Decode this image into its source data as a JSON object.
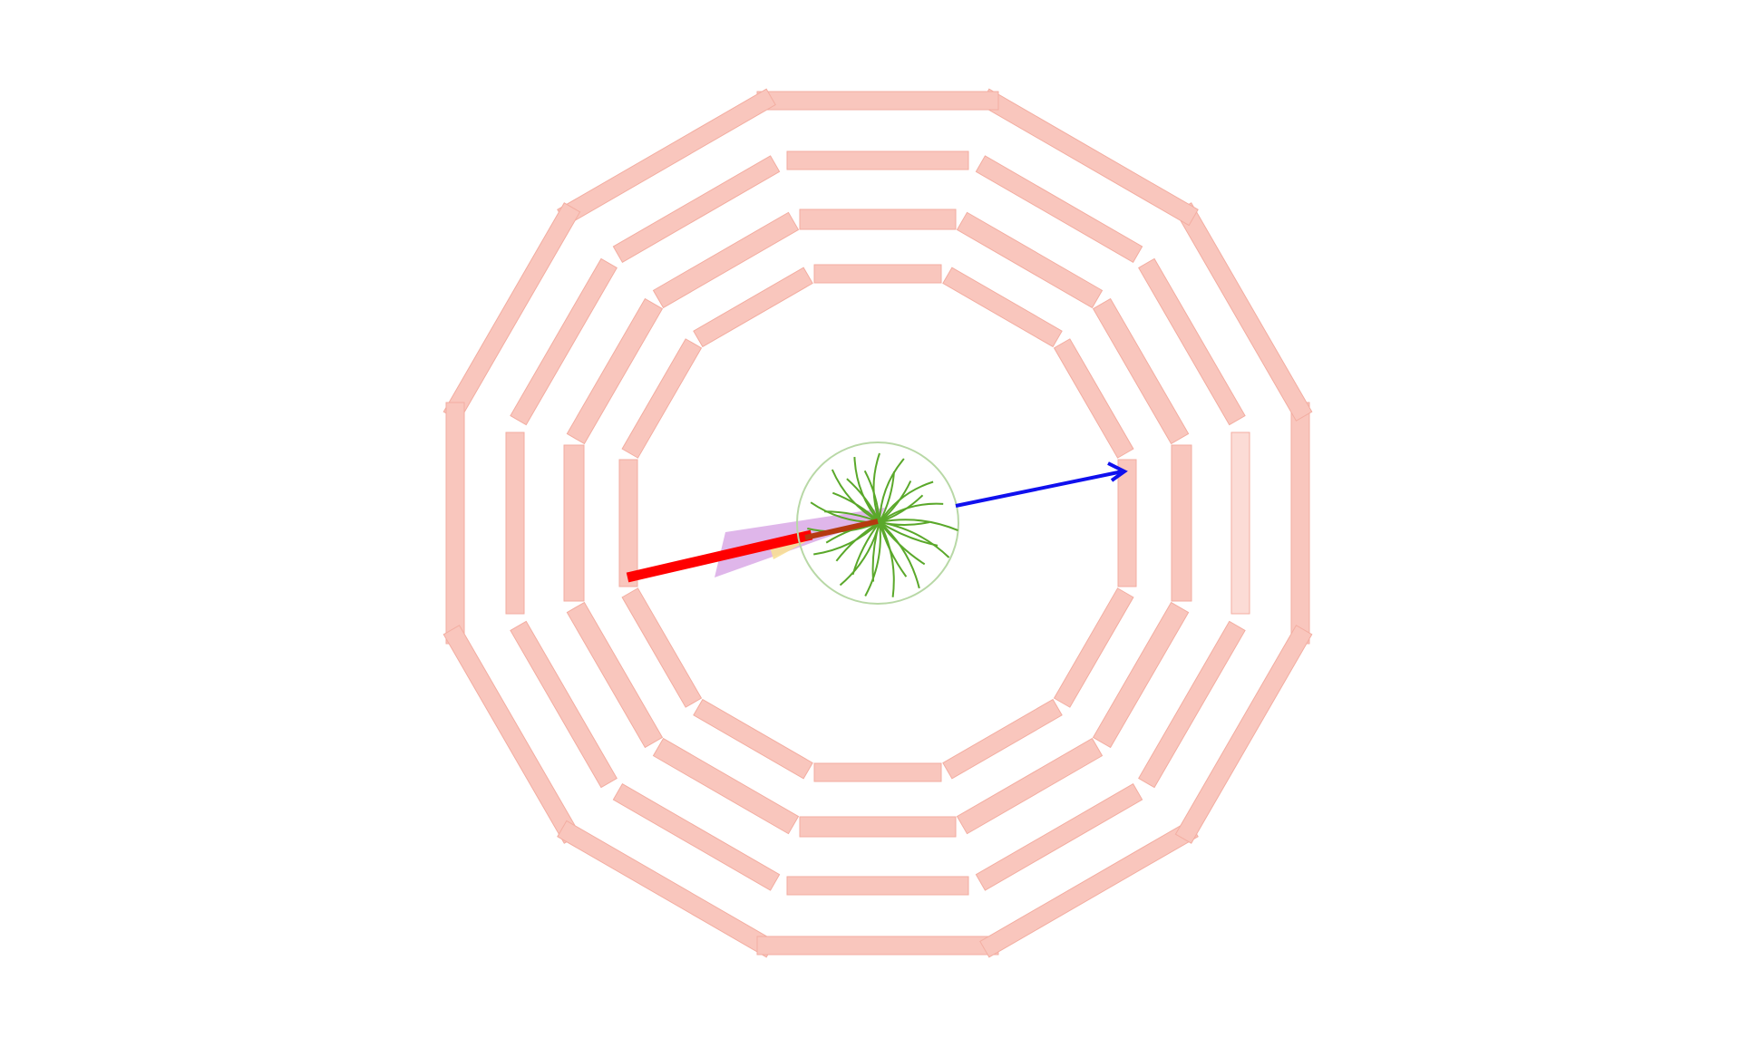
{
  "event_display": {
    "view": "transverse",
    "detector": {
      "muon_chamber_color": "#f9c6bd",
      "muon_chamber_stroke": "#f3aea2",
      "muon_chamber_highlight_color": "#fcdcd6",
      "stations": [
        {
          "station": 1
        },
        {
          "station": 2
        },
        {
          "station": 3
        },
        {
          "station": 4
        }
      ]
    },
    "tracker": {
      "outline_color": "#b8d8a6",
      "track_color": "#5aa82a",
      "track_count": 30
    },
    "objects": {
      "muon_color": "#ff0000",
      "met_arrow_color": "#1010ee",
      "jet_cone_color": "#d9a9e6",
      "ecal_deposit_color": "#f8df96"
    }
  }
}
